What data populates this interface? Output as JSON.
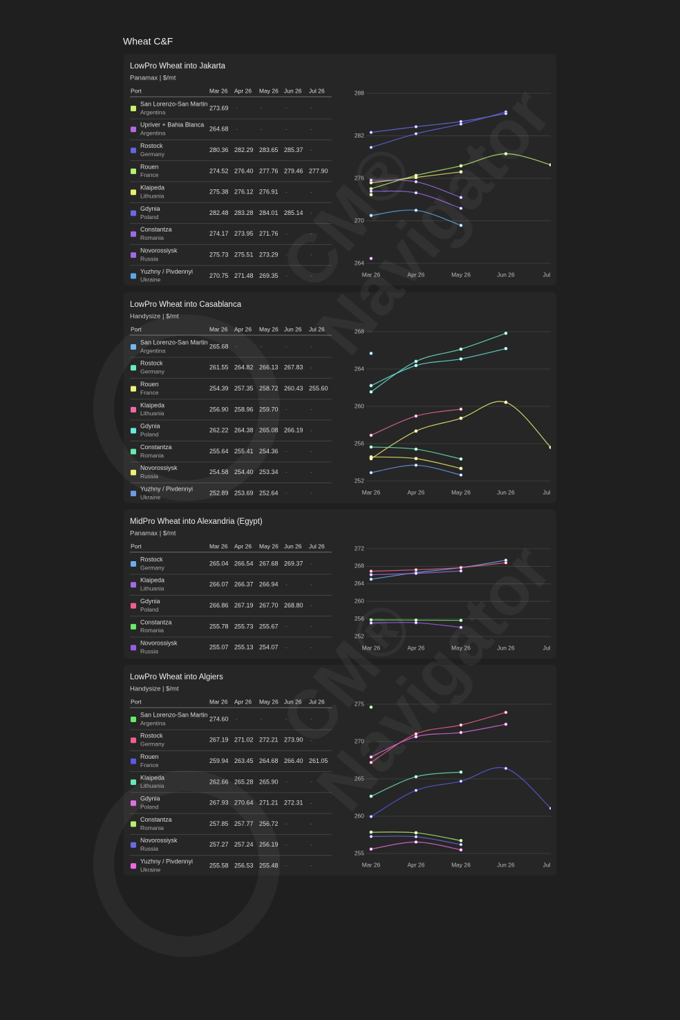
{
  "title": "Wheat C&F",
  "missing": "-",
  "watermark": {
    "mark": "CM®",
    "name": "Navigator"
  },
  "columns": [
    "Port",
    "Mar 26",
    "Apr 26",
    "May 26",
    "Jun 26",
    "Jul 26"
  ],
  "panels": [
    {
      "title": "LowPro Wheat into Jakarta",
      "subtitle": "Panamax | $/mt",
      "ylim": [
        264,
        288
      ],
      "yticks": [
        264,
        270,
        276,
        282,
        288
      ],
      "rows": [
        {
          "port": "San Lorenzo-San Martin",
          "country": "Argentina",
          "color": "#c6f06e",
          "values": [
            273.69,
            null,
            null,
            null,
            null
          ],
          "value_labels": [
            "273.69",
            null,
            null,
            null,
            null
          ]
        },
        {
          "port": "Upriver + Bahia Blanca",
          "country": "Argentina",
          "color": "#b36ae0",
          "values": [
            264.68,
            null,
            null,
            null,
            null
          ],
          "value_labels": [
            "264.68",
            null,
            null,
            null,
            null
          ]
        },
        {
          "port": "Rostock",
          "country": "Germany",
          "color": "#6366e0",
          "values": [
            280.36,
            282.29,
            283.65,
            285.37,
            null
          ],
          "value_labels": [
            "280.36",
            "282.29",
            "283.65",
            "285.37",
            null
          ]
        },
        {
          "port": "Rouen",
          "country": "France",
          "color": "#b5f06e",
          "values": [
            274.52,
            276.4,
            277.76,
            279.46,
            277.9
          ],
          "value_labels": [
            "274.52",
            "276.40",
            "277.76",
            "279.46",
            "277.90"
          ]
        },
        {
          "port": "Klaipeda",
          "country": "Lithuania",
          "color": "#ecec6e",
          "values": [
            275.38,
            276.12,
            276.91,
            null,
            null
          ],
          "value_labels": [
            "275.38",
            "276.12",
            "276.91",
            null,
            null
          ]
        },
        {
          "port": "Gdynia",
          "country": "Poland",
          "color": "#6a6ae8",
          "values": [
            282.48,
            283.28,
            284.01,
            285.14,
            null
          ],
          "value_labels": [
            "282.48",
            "283.28",
            "284.01",
            "285.14",
            null
          ]
        },
        {
          "port": "Constantza",
          "country": "Romania",
          "color": "#9b6ae8",
          "values": [
            274.17,
            273.95,
            271.76,
            null,
            null
          ],
          "value_labels": [
            "274.17",
            "273.95",
            "271.76",
            null,
            null
          ]
        },
        {
          "port": "Novorossiysk",
          "country": "Russia",
          "color": "#a06ae0",
          "values": [
            275.73,
            275.51,
            273.29,
            null,
            null
          ],
          "value_labels": [
            "275.73",
            "275.51",
            "273.29",
            null,
            null
          ]
        },
        {
          "port": "Yuzhny / Pivdennyi",
          "country": "Ukraine",
          "color": "#5aa8e8",
          "values": [
            270.75,
            271.48,
            269.35,
            null,
            null
          ],
          "value_labels": [
            "270.75",
            "271.48",
            "269.35",
            null,
            null
          ]
        }
      ]
    },
    {
      "title": "LowPro Wheat into Casablanca",
      "subtitle": "Handysize | $/mt",
      "ylim": [
        252,
        268
      ],
      "yticks": [
        252,
        256,
        260,
        264,
        268
      ],
      "rows": [
        {
          "port": "San Lorenzo-San Martin",
          "country": "Argentina",
          "color": "#6ab4f0",
          "values": [
            265.68,
            null,
            null,
            null,
            null
          ],
          "value_labels": [
            "265.68",
            null,
            null,
            null,
            null
          ]
        },
        {
          "port": "Rostock",
          "country": "Germany",
          "color": "#6ae8c8",
          "values": [
            261.55,
            264.82,
            266.13,
            267.83,
            null
          ],
          "value_labels": [
            "261.55",
            "264.82",
            "266.13",
            "267.83",
            null
          ]
        },
        {
          "port": "Rouen",
          "country": "France",
          "color": "#f0f07a",
          "values": [
            254.39,
            257.35,
            258.72,
            260.43,
            255.6
          ],
          "value_labels": [
            "254.39",
            "257.35",
            "258.72",
            "260.43",
            "255.60"
          ]
        },
        {
          "port": "Klaipeda",
          "country": "Lithuania",
          "color": "#f06aa8",
          "values": [
            256.9,
            258.96,
            259.7,
            null,
            null
          ],
          "value_labels": [
            "256.90",
            "258.96",
            "259.70",
            null,
            null
          ]
        },
        {
          "port": "Gdynia",
          "country": "Poland",
          "color": "#6ae8e0",
          "values": [
            262.22,
            264.38,
            265.08,
            266.19,
            null
          ],
          "value_labels": [
            "262.22",
            "264.38",
            "265.08",
            "266.19",
            null
          ]
        },
        {
          "port": "Constantza",
          "country": "Romania",
          "color": "#6ae8b0",
          "values": [
            255.64,
            255.41,
            254.36,
            null,
            null
          ],
          "value_labels": [
            "255.64",
            "255.41",
            "254.36",
            null,
            null
          ]
        },
        {
          "port": "Novorossiysk",
          "country": "Russia",
          "color": "#f0f06e",
          "values": [
            254.58,
            254.4,
            253.34,
            null,
            null
          ],
          "value_labels": [
            "254.58",
            "254.40",
            "253.34",
            null,
            null
          ]
        },
        {
          "port": "Yuzhny / Pivdennyi",
          "country": "Ukraine",
          "color": "#6a9ae8",
          "values": [
            252.89,
            253.69,
            252.64,
            null,
            null
          ],
          "value_labels": [
            "252.89",
            "253.69",
            "252.64",
            null,
            null
          ]
        }
      ]
    },
    {
      "title": "MidPro Wheat into Alexandria (Egypt)",
      "subtitle": "Panamax | $/mt",
      "ylim": [
        252,
        272
      ],
      "yticks": [
        252,
        256,
        260,
        264,
        268,
        272
      ],
      "rows": [
        {
          "port": "Rostock",
          "country": "Germany",
          "color": "#6aaef0",
          "values": [
            265.04,
            266.54,
            267.68,
            269.37,
            null
          ],
          "value_labels": [
            "265.04",
            "266.54",
            "267.68",
            "269.37",
            null
          ]
        },
        {
          "port": "Klaipeda",
          "country": "Lithuania",
          "color": "#a06ae8",
          "values": [
            266.07,
            266.37,
            266.94,
            null,
            null
          ],
          "value_labels": [
            "266.07",
            "266.37",
            "266.94",
            null,
            null
          ]
        },
        {
          "port": "Gdynia",
          "country": "Poland",
          "color": "#f0608a",
          "values": [
            266.86,
            267.19,
            267.7,
            268.8,
            null
          ],
          "value_labels": [
            "266.86",
            "267.19",
            "267.70",
            "268.80",
            null
          ]
        },
        {
          "port": "Constantza",
          "country": "Romania",
          "color": "#6ae86a",
          "values": [
            255.78,
            255.73,
            255.67,
            null,
            null
          ],
          "value_labels": [
            "255.78",
            "255.73",
            "255.67",
            null,
            null
          ]
        },
        {
          "port": "Novorossiysk",
          "country": "Russia",
          "color": "#9a5ae8",
          "values": [
            255.07,
            255.13,
            254.07,
            null,
            null
          ],
          "value_labels": [
            "255.07",
            "255.13",
            "254.07",
            null,
            null
          ]
        }
      ]
    },
    {
      "title": "LowPro Wheat into Algiers",
      "subtitle": "Handysize | $/mt",
      "ylim": [
        255,
        275
      ],
      "yticks": [
        255,
        260,
        265,
        270,
        275
      ],
      "rows": [
        {
          "port": "San Lorenzo-San Martin",
          "country": "Argentina",
          "color": "#6ae86a",
          "values": [
            274.6,
            null,
            null,
            null,
            null
          ],
          "value_labels": [
            "274.60",
            null,
            null,
            null,
            null
          ]
        },
        {
          "port": "Rostock",
          "country": "Germany",
          "color": "#f0608a",
          "values": [
            267.19,
            271.02,
            272.21,
            273.9,
            null
          ],
          "value_labels": [
            "267.19",
            "271.02",
            "272.21",
            "273.90",
            null
          ]
        },
        {
          "port": "Rouen",
          "country": "France",
          "color": "#5a5ae8",
          "values": [
            259.94,
            263.45,
            264.68,
            266.4,
            261.05
          ],
          "value_labels": [
            "259.94",
            "263.45",
            "264.68",
            "266.40",
            "261.05"
          ]
        },
        {
          "port": "Klaipeda",
          "country": "Lithuania",
          "color": "#6ae8b0",
          "values": [
            262.66,
            265.28,
            265.9,
            null,
            null
          ],
          "value_labels": [
            "262.66",
            "265.28",
            "265.90",
            null,
            null
          ]
        },
        {
          "port": "Gdynia",
          "country": "Poland",
          "color": "#e06ae0",
          "values": [
            267.93,
            270.64,
            271.21,
            272.31,
            null
          ],
          "value_labels": [
            "267.93",
            "270.64",
            "271.21",
            "272.31",
            null
          ]
        },
        {
          "port": "Constantza",
          "country": "Romania",
          "color": "#b8f06e",
          "values": [
            257.85,
            257.77,
            256.72,
            null,
            null
          ],
          "value_labels": [
            "257.85",
            "257.77",
            "256.72",
            null,
            null
          ]
        },
        {
          "port": "Novorossiysk",
          "country": "Russia",
          "color": "#6a6ae8",
          "values": [
            257.27,
            257.24,
            256.19,
            null,
            null
          ],
          "value_labels": [
            "257.27",
            "257.24",
            "256.19",
            null,
            null
          ]
        },
        {
          "port": "Yuzhny / Pivdennyi",
          "country": "Ukraine",
          "color": "#e86ae0",
          "values": [
            255.58,
            256.53,
            255.48,
            null,
            null
          ],
          "value_labels": [
            "255.58",
            "256.53",
            "255.48",
            null,
            null
          ]
        }
      ]
    }
  ]
}
